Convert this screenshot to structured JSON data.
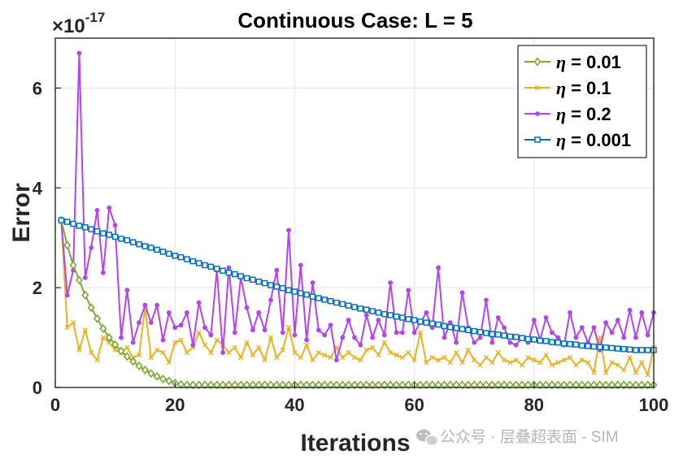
{
  "chart_data": {
    "type": "line",
    "title": "Continuous Case: L = 5",
    "xlabel": "Iterations",
    "ylabel": "Error",
    "exponent_label": "×10",
    "exponent_power": "-17",
    "xlim": [
      0,
      100
    ],
    "ylim": [
      0,
      7
    ],
    "xticks": [
      0,
      20,
      40,
      60,
      80,
      100
    ],
    "yticks": [
      0,
      2,
      4,
      6
    ],
    "grid": true,
    "legend_position": "top-right",
    "series": [
      {
        "name": "η = 0.01",
        "label_symbol": "η",
        "label_value": "= 0.01",
        "color": "#77AC30",
        "marker": "diamond",
        "values": [
          3.35,
          2.85,
          2.45,
          2.15,
          1.85,
          1.6,
          1.38,
          1.18,
          1.0,
          0.86,
          0.73,
          0.62,
          0.52,
          0.43,
          0.35,
          0.28,
          0.22,
          0.17,
          0.13,
          0.09,
          0.06,
          0.05,
          0.05,
          0.05,
          0.05,
          0.05,
          0.05,
          0.05,
          0.05,
          0.05,
          0.05,
          0.05,
          0.05,
          0.05,
          0.05,
          0.05,
          0.05,
          0.05,
          0.05,
          0.05,
          0.05,
          0.05,
          0.05,
          0.05,
          0.05,
          0.05,
          0.05,
          0.05,
          0.05,
          0.05,
          0.05,
          0.05,
          0.05,
          0.05,
          0.05,
          0.05,
          0.05,
          0.05,
          0.05,
          0.05,
          0.05,
          0.05,
          0.05,
          0.05,
          0.05,
          0.05,
          0.05,
          0.05,
          0.05,
          0.05,
          0.05,
          0.05,
          0.05,
          0.05,
          0.05,
          0.05,
          0.05,
          0.05,
          0.05,
          0.05,
          0.05,
          0.05,
          0.05,
          0.05,
          0.05,
          0.05,
          0.05,
          0.05,
          0.05,
          0.05,
          0.05,
          0.05,
          0.05,
          0.05,
          0.05,
          0.05,
          0.05,
          0.05,
          0.05,
          0.05
        ]
      },
      {
        "name": "η = 0.1",
        "label_symbol": "η",
        "label_value": "= 0.1",
        "color": "#EDB120",
        "marker": "x",
        "values": [
          3.35,
          1.2,
          1.3,
          0.75,
          1.15,
          0.7,
          0.55,
          1.0,
          0.9,
          0.75,
          0.7,
          0.8,
          0.6,
          0.65,
          1.6,
          0.6,
          0.75,
          0.7,
          0.5,
          0.9,
          0.95,
          0.7,
          0.8,
          1.1,
          0.85,
          0.7,
          0.95,
          0.85,
          0.7,
          0.8,
          0.6,
          0.9,
          0.65,
          0.8,
          0.55,
          1.0,
          0.6,
          0.75,
          1.2,
          0.7,
          0.6,
          0.85,
          0.55,
          0.7,
          0.65,
          0.6,
          0.8,
          0.6,
          0.7,
          0.6,
          0.55,
          0.75,
          0.8,
          0.65,
          0.9,
          0.7,
          0.65,
          0.6,
          0.7,
          0.55,
          1.1,
          0.5,
          0.6,
          0.55,
          0.6,
          0.5,
          0.7,
          0.5,
          0.75,
          0.55,
          0.45,
          0.6,
          0.5,
          0.7,
          0.55,
          0.5,
          0.55,
          0.45,
          0.6,
          0.55,
          0.5,
          0.65,
          0.45,
          0.5,
          0.55,
          0.6,
          0.45,
          0.55,
          0.5,
          0.3,
          1.0,
          0.3,
          0.5,
          0.45,
          0.35,
          0.6,
          0.3,
          0.5,
          0.25,
          0.8
        ]
      },
      {
        "name": "η = 0.2",
        "label_symbol": "η",
        "label_value": "= 0.2",
        "color": "#B544F0",
        "marker": "dot",
        "values": [
          3.35,
          1.85,
          2.35,
          6.7,
          2.2,
          2.8,
          3.55,
          2.3,
          3.6,
          3.25,
          1.0,
          1.95,
          0.9,
          1.3,
          1.65,
          1.3,
          1.65,
          0.95,
          1.5,
          1.2,
          1.25,
          1.5,
          0.85,
          1.7,
          1.2,
          1.05,
          2.35,
          0.7,
          2.4,
          1.1,
          2.2,
          1.6,
          1.15,
          1.5,
          1.15,
          1.75,
          2.35,
          1.1,
          3.15,
          1.05,
          2.45,
          0.95,
          2.1,
          1.15,
          1.05,
          1.25,
          0.55,
          1.0,
          1.35,
          1.0,
          0.85,
          1.45,
          1.0,
          1.35,
          1.05,
          2.1,
          1.1,
          1.1,
          1.95,
          1.1,
          1.3,
          1.5,
          1.2,
          2.4,
          1.0,
          1.3,
          0.9,
          1.9,
          1.2,
          0.9,
          1.0,
          1.75,
          0.9,
          1.4,
          1.2,
          0.9,
          0.85,
          1.0,
          0.9,
          1.35,
          0.95,
          1.4,
          1.1,
          1.0,
          0.85,
          1.5,
          1.0,
          1.2,
          0.9,
          1.2,
          0.75,
          1.3,
          1.1,
          1.35,
          1.0,
          1.55,
          1.0,
          1.5,
          1.05,
          1.5
        ]
      },
      {
        "name": "η = 0.001",
        "label_symbol": "η",
        "label_value": "= 0.001",
        "color": "#0072BD",
        "marker": "square",
        "values": [
          3.35,
          3.32,
          3.28,
          3.24,
          3.21,
          3.17,
          3.13,
          3.09,
          3.06,
          3.02,
          2.98,
          2.95,
          2.91,
          2.87,
          2.83,
          2.8,
          2.76,
          2.72,
          2.68,
          2.64,
          2.61,
          2.57,
          2.53,
          2.49,
          2.45,
          2.42,
          2.38,
          2.34,
          2.3,
          2.27,
          2.23,
          2.19,
          2.16,
          2.12,
          2.09,
          2.05,
          2.02,
          1.99,
          1.95,
          1.92,
          1.89,
          1.86,
          1.82,
          1.79,
          1.76,
          1.73,
          1.7,
          1.67,
          1.64,
          1.61,
          1.58,
          1.56,
          1.53,
          1.5,
          1.47,
          1.45,
          1.42,
          1.4,
          1.37,
          1.35,
          1.32,
          1.3,
          1.28,
          1.26,
          1.23,
          1.21,
          1.19,
          1.17,
          1.15,
          1.13,
          1.11,
          1.09,
          1.07,
          1.06,
          1.04,
          1.02,
          1.01,
          0.99,
          0.97,
          0.96,
          0.94,
          0.93,
          0.91,
          0.9,
          0.88,
          0.87,
          0.86,
          0.84,
          0.83,
          0.82,
          0.81,
          0.8,
          0.79,
          0.78,
          0.77,
          0.76,
          0.75,
          0.75,
          0.75,
          0.75
        ]
      }
    ]
  },
  "watermark": {
    "text": "公众号 · 层叠超表面 - SIM",
    "icon": "wechat-icon"
  }
}
